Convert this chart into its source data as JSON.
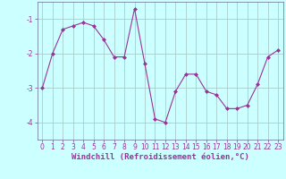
{
  "x": [
    0,
    1,
    2,
    3,
    4,
    5,
    6,
    7,
    8,
    9,
    10,
    11,
    12,
    13,
    14,
    15,
    16,
    17,
    18,
    19,
    20,
    21,
    22,
    23
  ],
  "y": [
    -3.0,
    -2.0,
    -1.3,
    -1.2,
    -1.1,
    -1.2,
    -1.6,
    -2.1,
    -2.1,
    -0.7,
    -2.3,
    -3.9,
    -4.0,
    -3.1,
    -2.6,
    -2.6,
    -3.1,
    -3.2,
    -3.6,
    -3.6,
    -3.5,
    -2.9,
    -2.1,
    -1.9
  ],
  "line_color": "#993399",
  "marker": "D",
  "marker_size": 2,
  "bg_color": "#ccffff",
  "grid_color": "#aacccc",
  "xlabel": "Windchill (Refroidissement éolien,°C)",
  "xlabel_fontsize": 6.5,
  "tick_fontsize": 5.5,
  "ylim": [
    -4.5,
    -0.5
  ],
  "yticks": [
    -4,
    -3,
    -2,
    -1
  ],
  "xlim": [
    -0.5,
    23.5
  ],
  "xticks": [
    0,
    1,
    2,
    3,
    4,
    5,
    6,
    7,
    8,
    9,
    10,
    11,
    12,
    13,
    14,
    15,
    16,
    17,
    18,
    19,
    20,
    21,
    22,
    23
  ],
  "text_color": "#993399",
  "spine_color": "#666699",
  "linewidth": 0.8
}
